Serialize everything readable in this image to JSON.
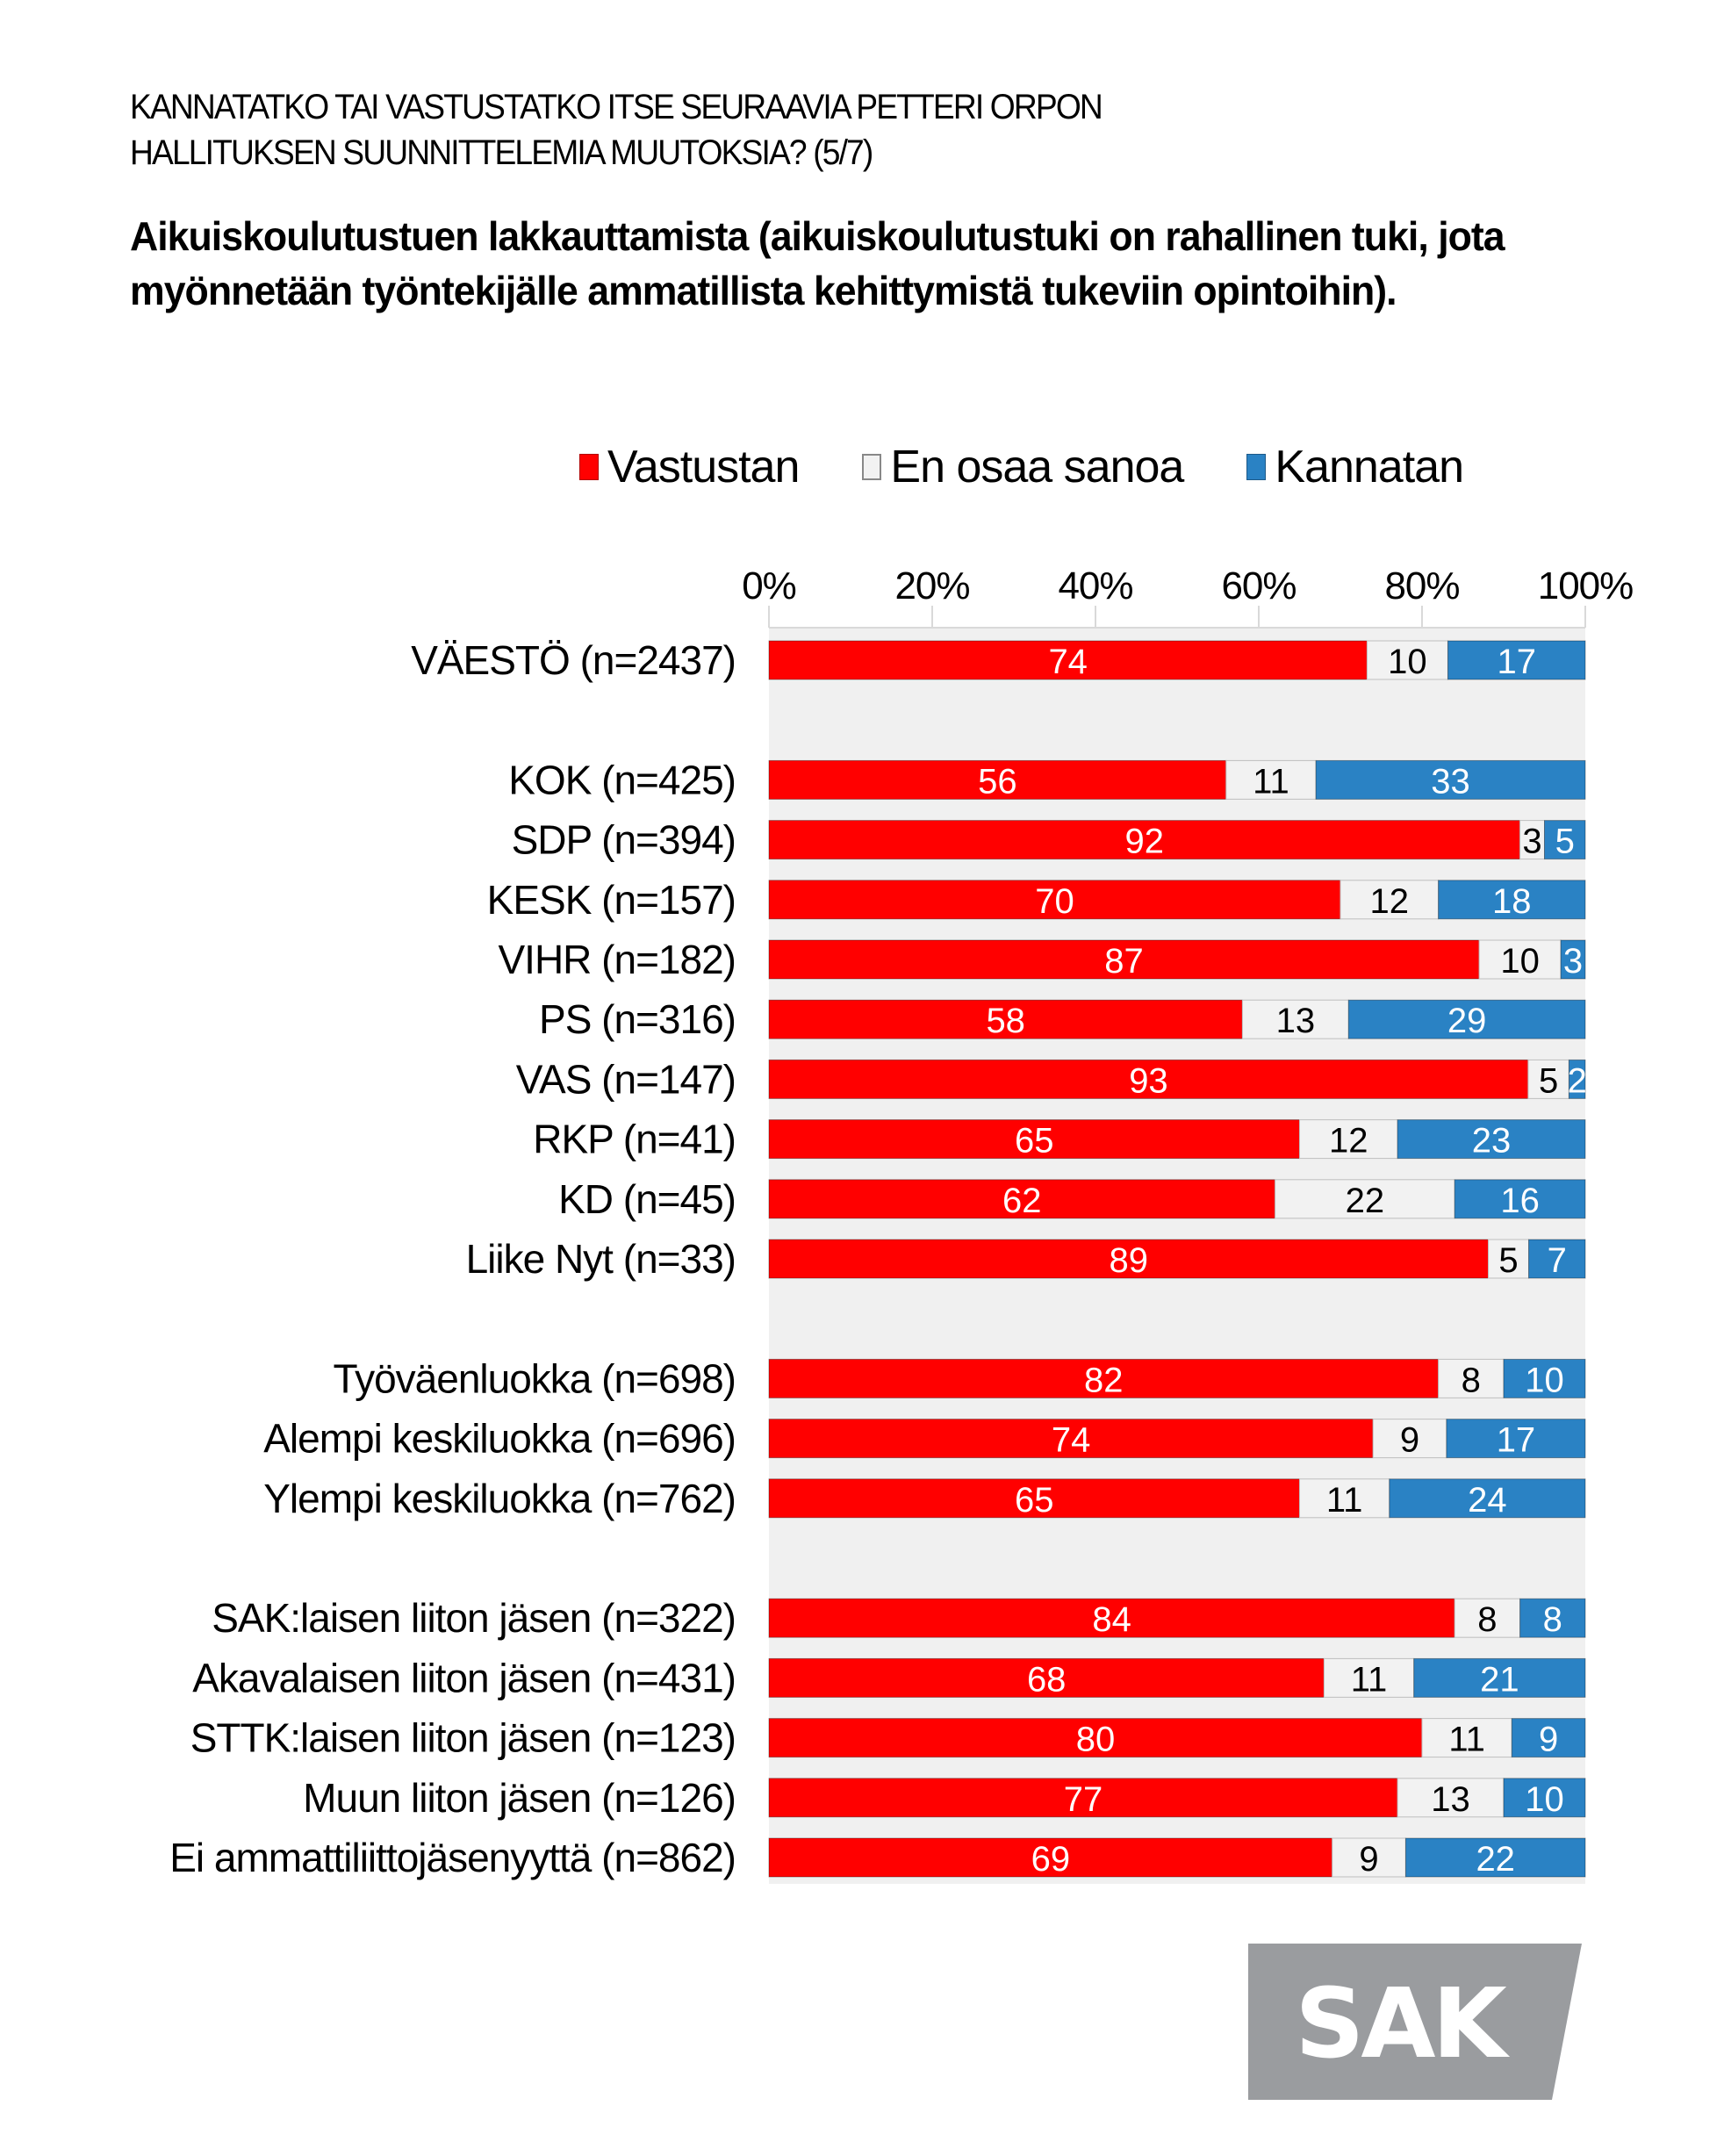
{
  "header": {
    "title_lines": [
      "KANNATATKO TAI VASTUSTATKO ITSE  SEURAAVIA PETTERI  ORPON",
      "HALLITUKSEN  SUUNNITTELEMIA  MUUTOKSIA?   (5/7)"
    ],
    "subtitle": "Aikuiskoulutustuen  lakkauttamista (aikuiskoulutustuki on rahallinen tuki, jota myönnetään työntekijälle ammatillista kehittymistä tukeviin opintoihin)."
  },
  "legend": [
    {
      "label": "Vastustan",
      "color": "#ff0000"
    },
    {
      "label": "En osaa sanoa",
      "color": "#f2f2f2"
    },
    {
      "label": "Kannatan",
      "color": "#2a82c4"
    }
  ],
  "logo": {
    "text": "SAK",
    "color": "#9a9c9f"
  },
  "chart_data": {
    "type": "bar",
    "orientation": "horizontal",
    "stacked": "percent",
    "title": "Aikuiskoulutustuen lakkauttamista",
    "xlabel": "",
    "ylabel": "",
    "xlim": [
      0,
      100
    ],
    "x_ticks": [
      "0%",
      "20%",
      "40%",
      "60%",
      "80%",
      "100%"
    ],
    "x_tick_values": [
      0,
      20,
      40,
      60,
      80,
      100
    ],
    "axis_position": "top",
    "grid": true,
    "legend_position": "top",
    "categories": [
      "VÄESTÖ (n=2437)",
      "",
      "KOK (n=425)",
      "SDP (n=394)",
      "KESK (n=157)",
      "VIHR (n=182)",
      "PS (n=316)",
      "VAS (n=147)",
      "RKP (n=41)",
      "KD (n=45)",
      "Liike Nyt (n=33)",
      "",
      "Työväenluokka (n=698)",
      "Alempi keskiluokka (n=696)",
      "Ylempi keskiluokka (n=762)",
      "",
      "SAK:laisen liiton jäsen (n=322)",
      "Akavalaisen liiton jäsen (n=431)",
      "STTK:laisen liiton jäsen (n=123)",
      "Muun liiton jäsen (n=126)",
      "Ei ammattiliittojäsenyyttä (n=862)"
    ],
    "series": [
      {
        "name": "Vastustan",
        "color": "#ff0000",
        "label_color": "#ffffff",
        "values": [
          74,
          null,
          56,
          92,
          70,
          87,
          58,
          93,
          65,
          62,
          89,
          null,
          82,
          74,
          65,
          null,
          84,
          68,
          80,
          77,
          69
        ]
      },
      {
        "name": "En osaa sanoa",
        "color": "#f2f2f2",
        "label_color": "#000000",
        "values": [
          10,
          null,
          11,
          3,
          12,
          10,
          13,
          5,
          12,
          22,
          5,
          null,
          8,
          9,
          11,
          null,
          8,
          11,
          11,
          13,
          9
        ]
      },
      {
        "name": "Kannatan",
        "color": "#2a82c4",
        "label_color": "#ffffff",
        "values": [
          17,
          null,
          33,
          5,
          18,
          3,
          29,
          2,
          23,
          16,
          7,
          null,
          10,
          17,
          24,
          null,
          8,
          21,
          9,
          10,
          22
        ]
      }
    ]
  }
}
